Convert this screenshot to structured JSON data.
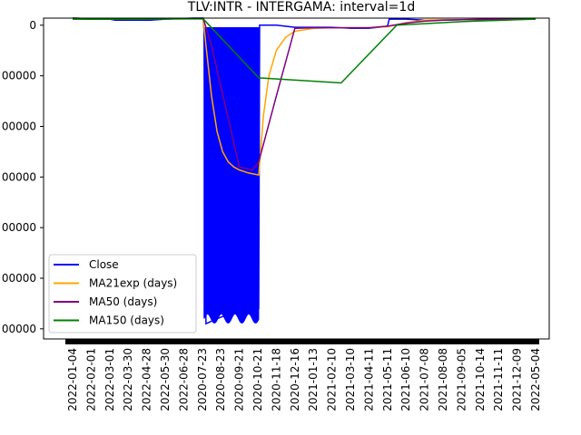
{
  "chart_data": {
    "type": "line",
    "title": "TLV:INTR - INTERGAMA: interval=1d",
    "xlabel": "",
    "ylabel": "",
    "ylim": [
      -310000,
      7000
    ],
    "y_ticks": [
      0,
      -50000,
      -100000,
      -150000,
      -200000,
      -250000,
      -300000
    ],
    "y_tick_labels": [
      "0",
      "00000",
      "00000",
      "00000",
      "00000",
      "00000",
      "00000"
    ],
    "x_tick_labels": [
      "2022-01-04",
      "2022-02-01",
      "2022-03-01",
      "2022-03-30",
      "2022-04-28",
      "2022-05-30",
      "2022-06-28",
      "2020-07-23",
      "2020-08-23",
      "2020-09-21",
      "2020-10-21",
      "2020-11-18",
      "2020-12-16",
      "2021-01-13",
      "2021-02-10",
      "2021-03-10",
      "2021-04-11",
      "2021-05-11",
      "2021-06-10",
      "2021-07-08",
      "2021-08-08",
      "2021-09-05",
      "2021-10-14",
      "2021-11-11",
      "2021-12-09",
      "2022-05-04"
    ],
    "grid": false,
    "legend": "lower-left",
    "series": [
      {
        "name": "Close",
        "color": "#0000ff",
        "x": [
          0,
          2,
          2.3,
          4.2,
          5,
          6.5,
          7.05,
          7.1,
          7.2,
          7.8,
          8.5,
          9.3,
          10.05,
          10.1,
          11,
          12,
          13,
          14,
          15,
          16,
          17,
          17.1,
          18,
          19,
          20,
          21,
          22,
          23,
          24,
          25
        ],
        "y": [
          7000,
          6000,
          5000,
          5000,
          6000,
          7000,
          7000,
          -5000,
          -295000,
          -290000,
          -285000,
          -280000,
          -280000,
          0,
          0,
          -2000,
          -2000,
          -2000,
          -3000,
          -3000,
          -1000,
          6000,
          6000,
          5000,
          5000,
          5500,
          5500,
          6000,
          6000,
          6000
        ]
      },
      {
        "name": "MA21exp (days)",
        "color": "#ffa500",
        "x": [
          0,
          1,
          2,
          3,
          4,
          5,
          6,
          7.05,
          7.2,
          7.5,
          7.8,
          8.1,
          8.4,
          8.7,
          9,
          9.5,
          10.05,
          10.15,
          10.3,
          10.6,
          11,
          11.5,
          12,
          13,
          14,
          15,
          16,
          17,
          18,
          19,
          20,
          21,
          22,
          23,
          24,
          25
        ],
        "y": [
          7000,
          6500,
          6000,
          6000,
          6200,
          6500,
          6700,
          6800,
          -20000,
          -70000,
          -105000,
          -125000,
          -135000,
          -140000,
          -143000,
          -146000,
          -148000,
          -125000,
          -90000,
          -50000,
          -25000,
          -12000,
          -6000,
          -3000,
          -2500,
          -2500,
          -2500,
          -1500,
          2500,
          5000,
          5500,
          5600,
          5700,
          5800,
          5900,
          6000
        ]
      },
      {
        "name": "MA50 (days)",
        "color": "#800080",
        "x": [
          0,
          1,
          2,
          3,
          4,
          5,
          6,
          7.05,
          7.5,
          8,
          8.5,
          9,
          9.7,
          10.05,
          11,
          12,
          13,
          14,
          15,
          16,
          17,
          18,
          19,
          20,
          21,
          22,
          23,
          24,
          25
        ],
        "y": [
          7000,
          6500,
          6000,
          6000,
          6200,
          6500,
          6700,
          6900,
          -20000,
          -60000,
          -100000,
          -140000,
          -143000,
          -135000,
          -70000,
          -3000,
          -2500,
          -2500,
          -2500,
          -2500,
          -1000,
          2000,
          4000,
          5000,
          5500,
          5800,
          5900,
          6000,
          6100
        ]
      },
      {
        "name": "MA150 (days)",
        "color": "#008000",
        "x": [
          0,
          1,
          2,
          3,
          4,
          5,
          6,
          7.05,
          10.05,
          14.5,
          17.5,
          19,
          20,
          21,
          22,
          23,
          24,
          25
        ],
        "y": [
          6000,
          5800,
          5800,
          5900,
          6000,
          6100,
          6200,
          6300,
          -52000,
          -57000,
          0,
          1500,
          2500,
          3500,
          4200,
          4800,
          5400,
          6000
        ]
      }
    ]
  }
}
